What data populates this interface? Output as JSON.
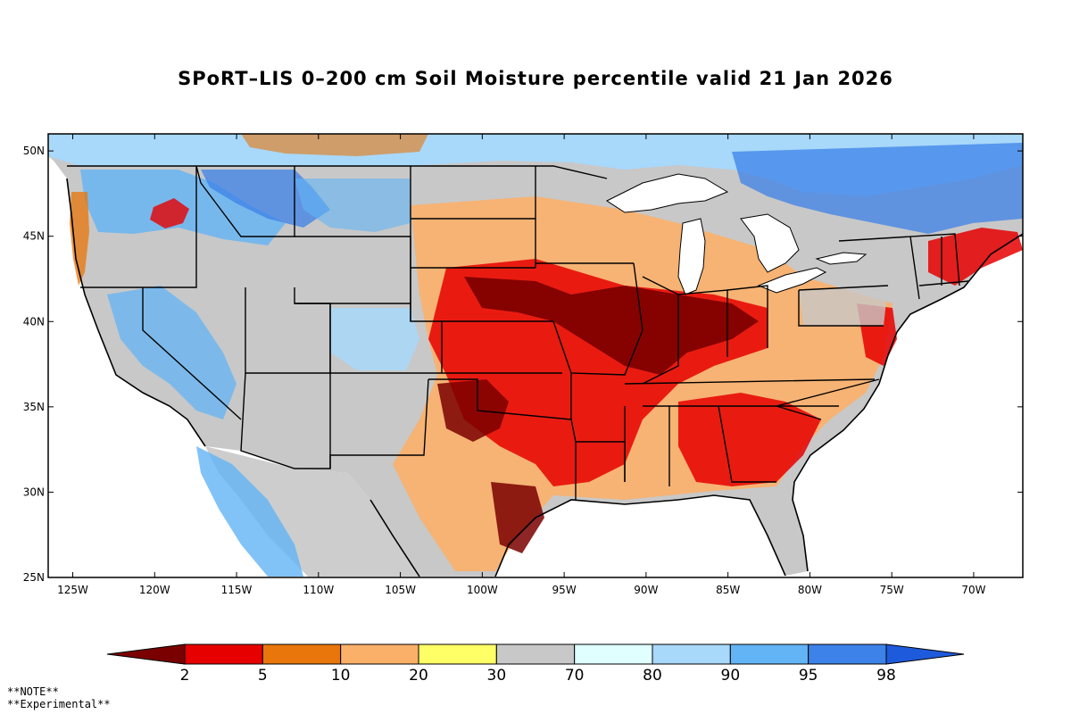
{
  "title": "SPoRT–LIS 0–200 cm Soil Moisture percentile valid 21 Jan 2026",
  "map": {
    "lat_ticks": [
      "50N",
      "45N",
      "40N",
      "35N",
      "30N",
      "25N"
    ],
    "lon_ticks": [
      "125W",
      "120W",
      "115W",
      "110W",
      "105W",
      "100W",
      "95W",
      "90W",
      "85W",
      "80W",
      "75W",
      "70W"
    ],
    "lat_range": [
      25,
      51
    ],
    "lon_range": [
      -126.5,
      -67
    ]
  },
  "colorbar": {
    "colors": [
      "#7a0000",
      "#e60000",
      "#e8760a",
      "#fbb06a",
      "#ffff66",
      "#c8c8c8",
      "#e0ffff",
      "#a8d8fa",
      "#63b4f5",
      "#3c82e8",
      "#1e5adc"
    ],
    "labels": [
      "2",
      "5",
      "10",
      "20",
      "30",
      "70",
      "80",
      "90",
      "95",
      "98"
    ]
  },
  "notes": [
    "**NOTE**",
    "**Experimental**"
  ]
}
